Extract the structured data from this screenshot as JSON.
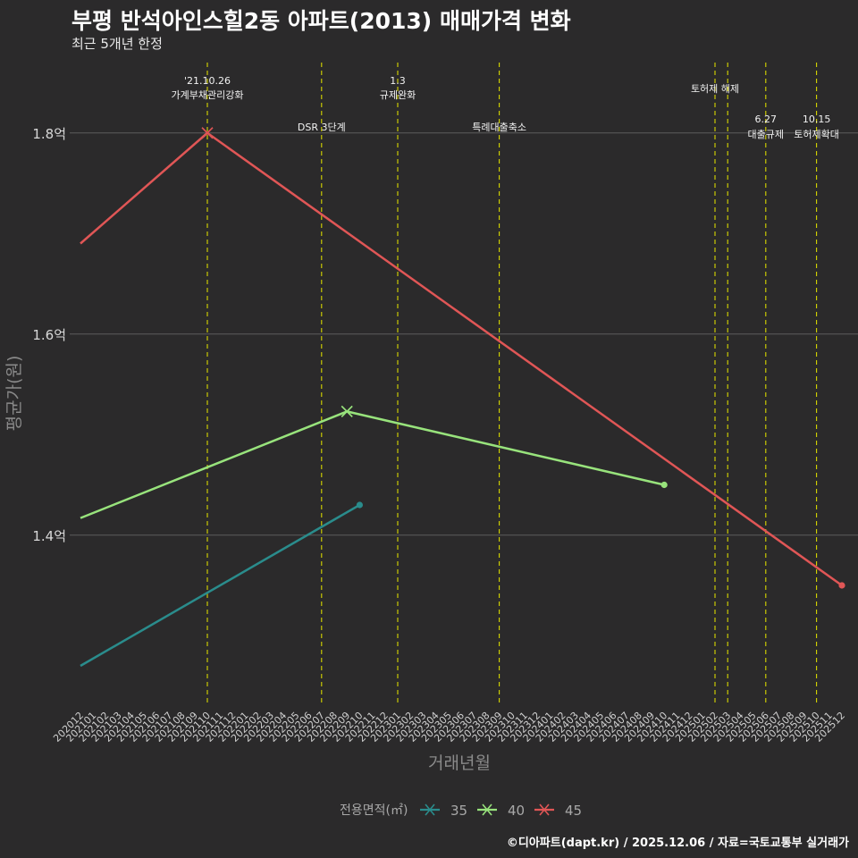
{
  "header": {
    "title": "부평 반석아인스힐2동 아파트(2013) 매매가격 변화",
    "subtitle": "최근 5개년 한정"
  },
  "footer": {
    "caption": "©디아파트(dapt.kr) / 2025.12.06 / 자료=국토교통부 실거래가"
  },
  "chart_data": {
    "type": "line",
    "xlabel": "거래년월",
    "ylabel": "평균가(원)",
    "categories": [
      "202012",
      "202101",
      "202102",
      "202103",
      "202104",
      "202105",
      "202106",
      "202107",
      "202108",
      "202109",
      "202110",
      "202111",
      "202112",
      "202201",
      "202202",
      "202203",
      "202204",
      "202205",
      "202206",
      "202207",
      "202208",
      "202209",
      "202210",
      "202211",
      "202212",
      "202301",
      "202302",
      "202303",
      "202304",
      "202305",
      "202306",
      "202307",
      "202308",
      "202309",
      "202310",
      "202311",
      "202312",
      "202401",
      "202402",
      "202403",
      "202404",
      "202405",
      "202406",
      "202407",
      "202408",
      "202409",
      "202410",
      "202411",
      "202412",
      "202501",
      "202502",
      "202503",
      "202504",
      "202505",
      "202506",
      "202507",
      "202508",
      "202509",
      "202510",
      "202511",
      "202512"
    ],
    "ylim": [
      1.23,
      1.87
    ],
    "yticks": [
      {
        "value": 1.4,
        "label": "1.4억"
      },
      {
        "value": 1.6,
        "label": "1.6억"
      },
      {
        "value": 1.8,
        "label": "1.8억"
      }
    ],
    "series": [
      {
        "name": "35",
        "color": "#2a8c8c",
        "points": [
          {
            "x": "202012",
            "y": 1.27
          },
          {
            "x": "202210",
            "y": 1.43
          }
        ]
      },
      {
        "name": "40",
        "color": "#98e37c",
        "points": [
          {
            "x": "202012",
            "y": 1.417
          },
          {
            "x": "202209",
            "y": 1.523
          },
          {
            "x": "202410",
            "y": 1.45
          }
        ]
      },
      {
        "name": "45",
        "color": "#e05656",
        "points": [
          {
            "x": "202012",
            "y": 1.69
          },
          {
            "x": "202110",
            "y": 1.8
          },
          {
            "x": "202512",
            "y": 1.35
          }
        ]
      }
    ],
    "vlines": [
      {
        "x": "202110",
        "lines": [
          "'21.10.26",
          "가계부채관리강화"
        ],
        "row": "top"
      },
      {
        "x": "202207",
        "lines": [
          "DSR 3단계"
        ],
        "row": "low"
      },
      {
        "x": "202301",
        "lines": [
          "1.3",
          "규제완화"
        ],
        "row": "top"
      },
      {
        "x": "202309",
        "lines": [
          "특례대출축소"
        ],
        "row": "low"
      },
      {
        "x": "202502",
        "lines": [
          "토허제 해제"
        ],
        "row": "mid"
      },
      {
        "x": "202503",
        "lines": [],
        "row": "none"
      },
      {
        "x": "202506",
        "lines": [
          "6.27",
          "대출규제"
        ],
        "row": "right"
      },
      {
        "x": "202510",
        "lines": [
          "10.15",
          "토허제확대"
        ],
        "row": "right"
      }
    ],
    "legend": {
      "title": "전용면적(㎡)",
      "entries": [
        "35",
        "40",
        "45"
      ]
    }
  }
}
